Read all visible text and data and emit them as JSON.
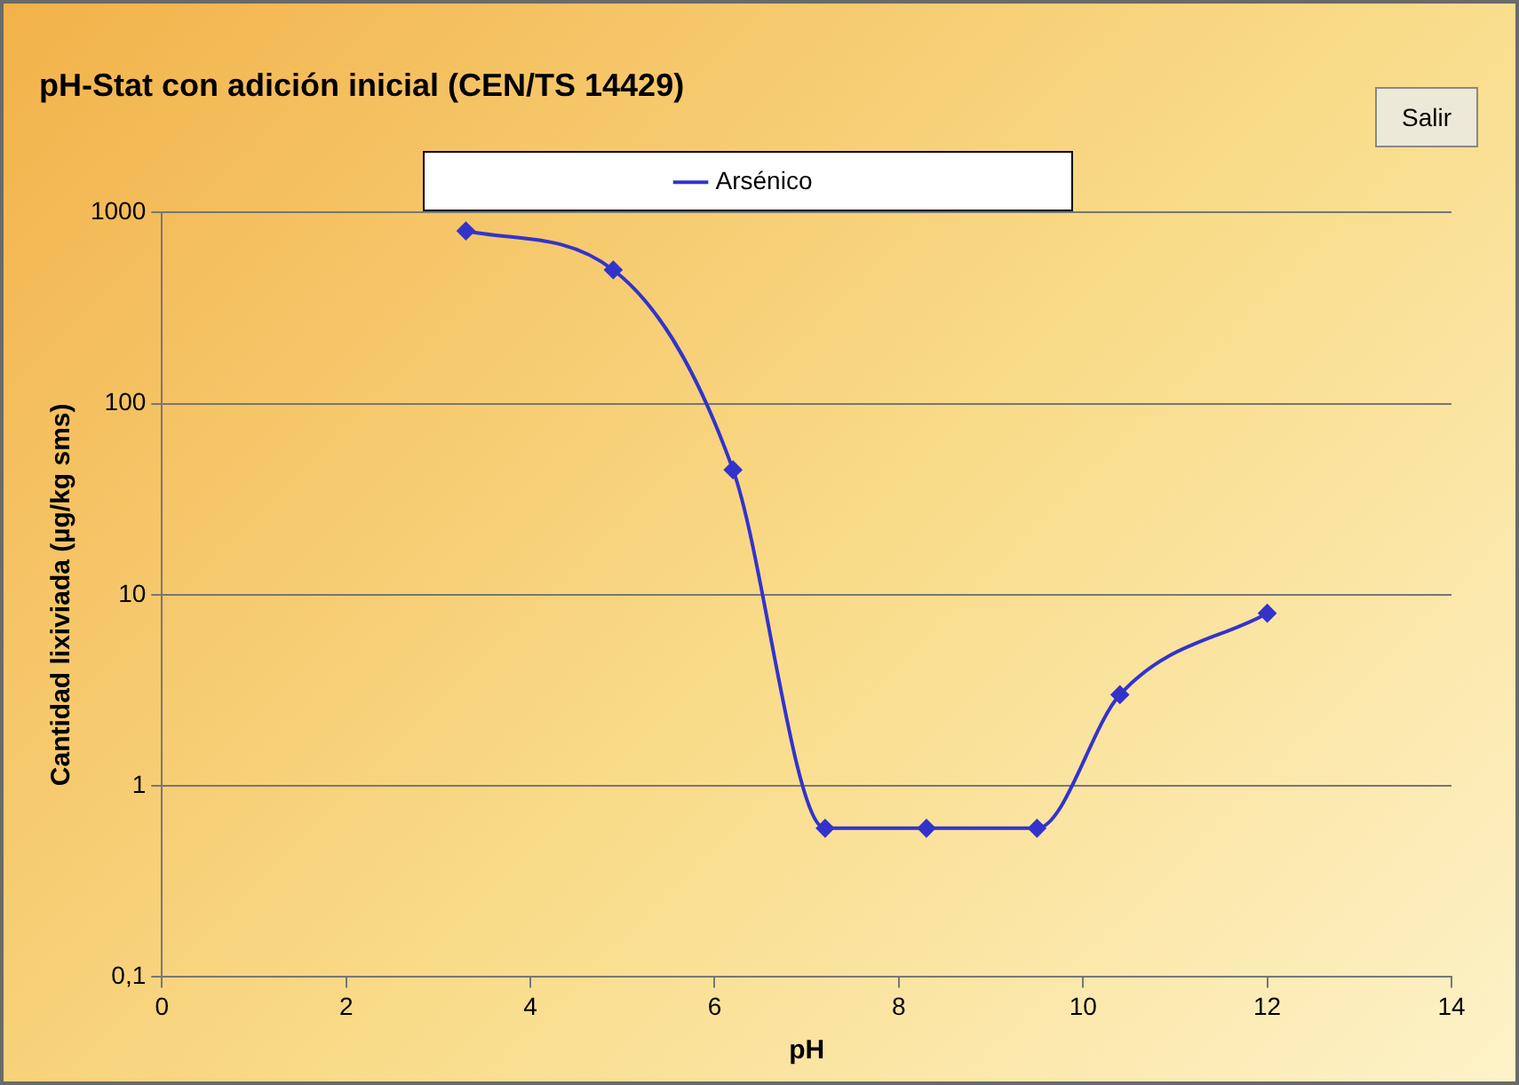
{
  "chart_data": {
    "type": "line",
    "title": "pH-Stat con adición inicial (CEN/TS 14429)",
    "xlabel": "pH",
    "ylabel": "Cantidad lixiviada (µg/kg sms)",
    "annotations": [
      "Salir"
    ],
    "series": [
      {
        "name": "Arsénico",
        "color": "#3333cc",
        "x": [
          3.3,
          4.9,
          6.2,
          7.2,
          8.3,
          9.5,
          10.4,
          12
        ],
        "values": [
          800,
          500,
          45,
          0.6,
          0.6,
          0.6,
          3,
          8
        ]
      }
    ],
    "xlim": [
      0,
      14
    ],
    "xticks": [
      0,
      2,
      4,
      6,
      8,
      10,
      12,
      14
    ],
    "ylim": [
      0.1,
      1000
    ],
    "yticks": [
      {
        "value": 0.1,
        "label": "0,1"
      },
      1,
      10,
      100,
      1000
    ],
    "log": "y",
    "grid": "y",
    "legend": "top",
    "marker": "diamond",
    "line_style": "solid"
  }
}
